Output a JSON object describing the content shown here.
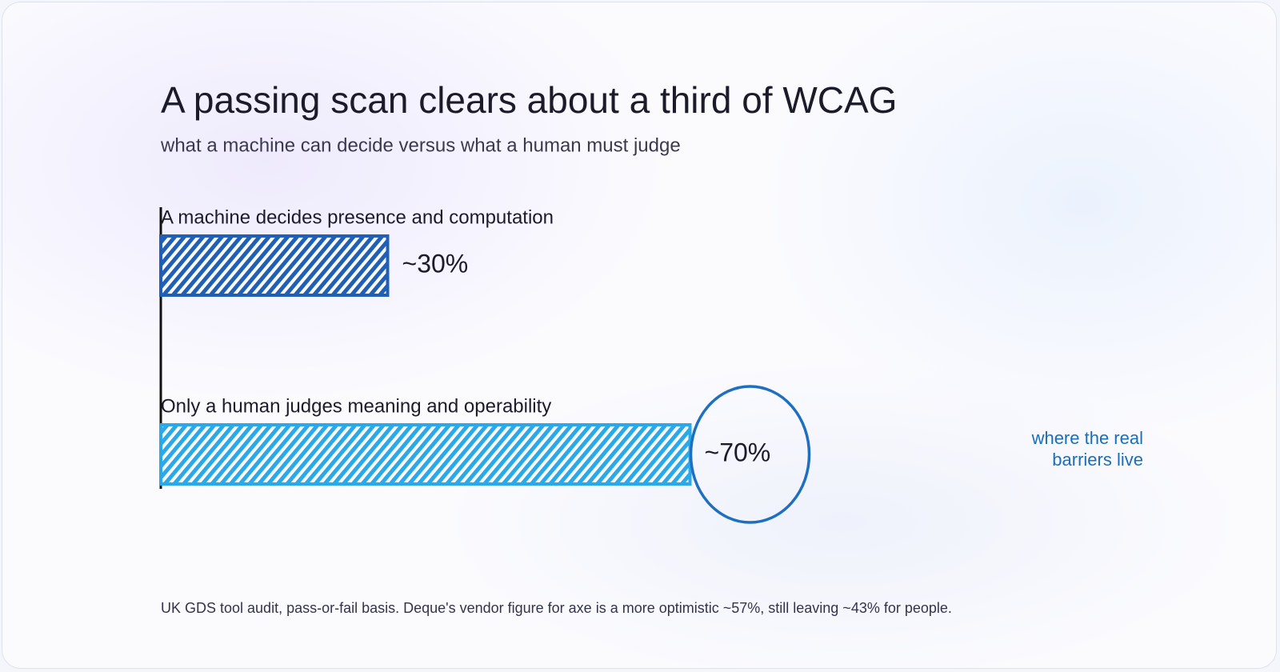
{
  "chart_data": {
    "type": "bar",
    "orientation": "horizontal",
    "title": "A passing scan clears about a third of WCAG",
    "subtitle": "what a machine can decide versus what a human must judge",
    "categories": [
      "A machine decides presence and computation",
      "Only a human judges meaning and operability"
    ],
    "values": [
      30,
      70
    ],
    "value_labels": [
      "~30%",
      "~70%"
    ],
    "colors": [
      "#1f5fb5",
      "#2aa9ea"
    ],
    "annotation": [
      "where the real",
      "barriers live"
    ],
    "annotation_color": "#1a6fb8",
    "highlight_color": "#1f6fc0",
    "footnote": "UK GDS tool audit, pass-or-fail basis. Deque's vendor figure for axe is a more optimistic ~57%, still leaving ~43% for people."
  }
}
